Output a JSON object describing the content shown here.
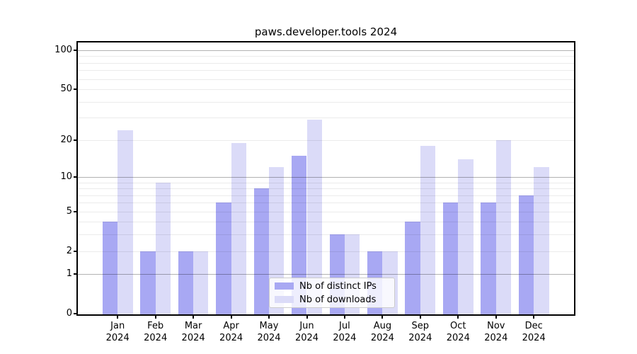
{
  "figure": {
    "title": "paws.developer.tools 2024"
  },
  "chart_data": {
    "type": "bar",
    "title": "paws.developer.tools 2024",
    "categories": [
      "Jan",
      "Feb",
      "Mar",
      "Apr",
      "May",
      "Jun",
      "Jul",
      "Aug",
      "Sep",
      "Oct",
      "Nov",
      "Dec"
    ],
    "year_label": "2024",
    "series": [
      {
        "name": "Nb of distinct IPs",
        "color": "#a8a8f3",
        "values": [
          4,
          2,
          2,
          6,
          8,
          15,
          3,
          2,
          4,
          6,
          6,
          7
        ]
      },
      {
        "name": "Nb of downloads",
        "color": "#dbdbf8",
        "values": [
          24,
          9,
          2,
          19,
          12,
          29,
          3,
          2,
          18,
          14,
          20,
          12
        ]
      }
    ],
    "xlabel": "",
    "ylabel": "",
    "yscale": "symlog-log1p",
    "ylim": [
      0,
      114
    ],
    "y_ticks_labeled": [
      0,
      1,
      2,
      5,
      10,
      20,
      50,
      100
    ],
    "y_ticks_major_grid": [
      1,
      10,
      100
    ],
    "y_ticks_minor": [
      3,
      4,
      6,
      7,
      8,
      9,
      30,
      40,
      60,
      70,
      80,
      90
    ],
    "grid": "horizontal",
    "legend_position": "lower center"
  }
}
